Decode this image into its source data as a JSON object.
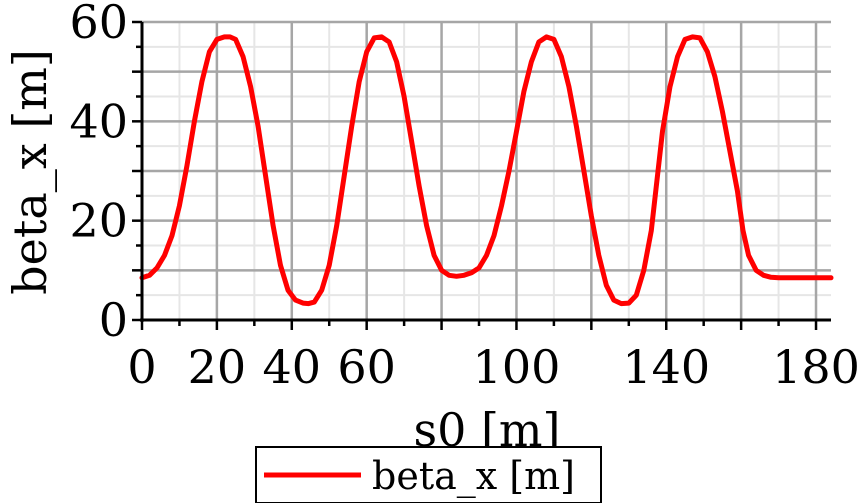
{
  "chart_data": {
    "type": "line",
    "title": "",
    "xlabel": "s0 [m]",
    "ylabel": "beta_x [m]",
    "xlim": [
      0,
      184
    ],
    "ylim": [
      0,
      60
    ],
    "xticks": [
      0,
      20,
      40,
      60,
      100,
      140,
      180
    ],
    "xtick_labels": [
      "0",
      "20",
      "40",
      "60",
      "100",
      "140",
      "180"
    ],
    "yticks": [
      0,
      20,
      40,
      60
    ],
    "ytick_labels": [
      "0",
      "20",
      "40",
      "60"
    ],
    "grid": true,
    "legend_position": "bottom",
    "series": [
      {
        "name": "beta_x [m]",
        "color": "#ff0000",
        "x": [
          0,
          2,
          4,
          6,
          8,
          10,
          12,
          14,
          16,
          18,
          20,
          22,
          23.5,
          25,
          27,
          29,
          31,
          33,
          35,
          37,
          39,
          41,
          43,
          44.5,
          46,
          48,
          50,
          52,
          54,
          56,
          58,
          60,
          62,
          64,
          66,
          68,
          70,
          72,
          74,
          76,
          78,
          80,
          82,
          84,
          86,
          88,
          90,
          92,
          94,
          96,
          98,
          100,
          102,
          104,
          106,
          108,
          110,
          112,
          114,
          116,
          118,
          120,
          122,
          124,
          126,
          128,
          130,
          132,
          134,
          136,
          137.5,
          139,
          141,
          143,
          145,
          147,
          149,
          151,
          153,
          155,
          157,
          159,
          160.5,
          162,
          164,
          166,
          168,
          170,
          172,
          174,
          176,
          178,
          180,
          182,
          184
        ],
        "y": [
          8.5,
          9,
          10.5,
          13,
          17,
          23,
          31,
          40,
          48,
          54,
          56.5,
          57,
          57,
          56.5,
          53,
          47,
          39,
          29,
          19,
          11,
          6,
          4,
          3.4,
          3.3,
          3.6,
          6,
          11,
          19,
          29,
          39,
          48,
          54,
          56.8,
          57,
          56,
          52,
          45,
          36,
          27,
          19,
          13,
          10,
          9,
          8.8,
          9,
          9.5,
          10.5,
          13,
          17,
          23,
          30,
          38,
          46,
          52,
          56,
          57,
          56.5,
          53,
          47,
          39,
          30,
          21,
          13,
          7,
          4,
          3.3,
          3.4,
          5,
          10,
          18,
          28,
          38,
          47,
          53,
          56.5,
          57,
          56.8,
          54,
          49,
          42,
          34,
          26,
          18,
          13,
          10,
          9,
          8.6,
          8.5,
          8.5,
          8.5,
          8.5,
          8.5,
          8.5,
          8.5,
          8.5
        ]
      }
    ]
  }
}
